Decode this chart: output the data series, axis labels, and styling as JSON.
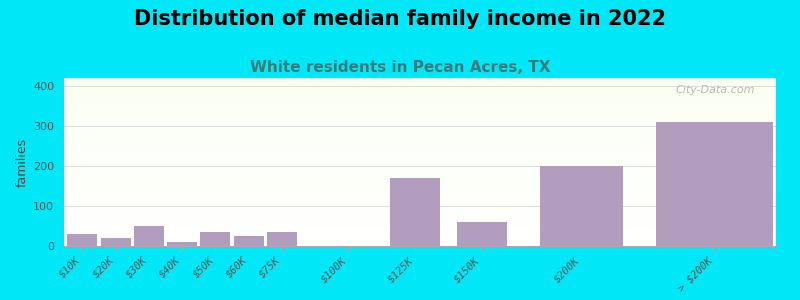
{
  "title": "Distribution of median family income in 2022",
  "subtitle": "White residents in Pecan Acres, TX",
  "ylabel": "families",
  "categories": [
    "$10K",
    "$20K",
    "$30K",
    "$40K",
    "$50K",
    "$60K",
    "$75K",
    "$100K",
    "$125K",
    "$150K",
    "$200K",
    "> $200K"
  ],
  "values": [
    30,
    20,
    50,
    10,
    35,
    25,
    35,
    0,
    170,
    60,
    200,
    310
  ],
  "bar_widths": [
    1,
    1,
    1,
    1,
    1,
    1,
    1,
    1,
    1,
    1,
    1,
    1
  ],
  "bar_gaps": [
    10,
    10,
    10,
    10,
    10,
    10,
    25,
    25,
    25,
    50,
    50,
    50
  ],
  "bar_color": "#b39dbe",
  "bg_outer": "#00e8f8",
  "grid_color": "#dddddd",
  "title_fontsize": 15,
  "subtitle_fontsize": 11,
  "subtitle_color": "#3a7a7a",
  "ylabel_color": "#444444",
  "tick_label_color": "#555555",
  "watermark": "City-Data.com",
  "ylim": [
    0,
    420
  ],
  "yticks": [
    0,
    100,
    200,
    300,
    400
  ]
}
